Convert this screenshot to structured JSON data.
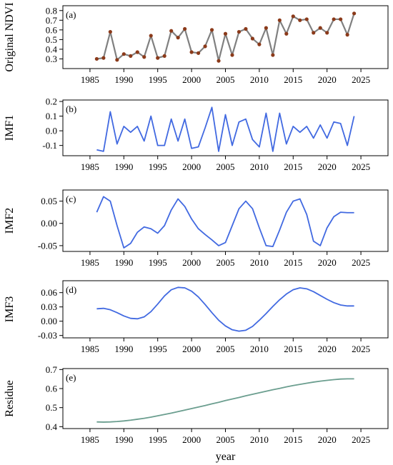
{
  "chart_data": [
    {
      "type": "line",
      "panel_label": "(a)",
      "ylabel": "Original NDVI",
      "x": [
        1986,
        1987,
        1988,
        1989,
        1990,
        1991,
        1992,
        1993,
        1994,
        1995,
        1996,
        1997,
        1998,
        1999,
        2000,
        2001,
        2002,
        2003,
        2004,
        2005,
        2006,
        2007,
        2008,
        2009,
        2010,
        2011,
        2012,
        2013,
        2014,
        2015,
        2016,
        2017,
        2018,
        2019,
        2020,
        2021,
        2022,
        2023,
        2024
      ],
      "series": [
        {
          "values": [
            0.3,
            0.31,
            0.58,
            0.29,
            0.35,
            0.33,
            0.37,
            0.32,
            0.54,
            0.31,
            0.33,
            0.59,
            0.52,
            0.61,
            0.37,
            0.36,
            0.43,
            0.6,
            0.28,
            0.56,
            0.34,
            0.58,
            0.61,
            0.51,
            0.45,
            0.62,
            0.34,
            0.7,
            0.56,
            0.74,
            0.7,
            0.71,
            0.57,
            0.62,
            0.57,
            0.71,
            0.71,
            0.55,
            0.77
          ],
          "color": "#808080",
          "marker_color": "#8B3A1A"
        }
      ],
      "ylim": [
        0.2,
        0.85
      ],
      "yticks": [
        "0.3",
        "0.4",
        "0.5",
        "0.6",
        "0.7",
        "0.8"
      ],
      "ytick_values": [
        0.3,
        0.4,
        0.5,
        0.6,
        0.7,
        0.8
      ],
      "xlim": [
        1981,
        2029
      ],
      "xticks": [
        "1985",
        "1990",
        "1995",
        "2000",
        "2005",
        "2010",
        "2015",
        "2020",
        "2025"
      ],
      "xtick_values": [
        1985,
        1990,
        1995,
        2000,
        2005,
        2010,
        2015,
        2020,
        2025
      ]
    },
    {
      "type": "line",
      "panel_label": "(b)",
      "ylabel": "IMF1",
      "x": [
        1986,
        1987,
        1988,
        1989,
        1990,
        1991,
        1992,
        1993,
        1994,
        1995,
        1996,
        1997,
        1998,
        1999,
        2000,
        2001,
        2002,
        2003,
        2004,
        2005,
        2006,
        2007,
        2008,
        2009,
        2010,
        2011,
        2012,
        2013,
        2014,
        2015,
        2016,
        2017,
        2018,
        2019,
        2020,
        2021,
        2022,
        2023,
        2024
      ],
      "series": [
        {
          "values": [
            -0.13,
            -0.14,
            0.13,
            -0.09,
            0.03,
            -0.01,
            0.03,
            -0.07,
            0.1,
            -0.1,
            -0.1,
            0.08,
            -0.07,
            0.08,
            -0.12,
            -0.11,
            0.02,
            0.16,
            -0.14,
            0.11,
            -0.1,
            0.06,
            0.08,
            -0.06,
            -0.11,
            0.12,
            -0.14,
            0.12,
            -0.09,
            0.03,
            -0.01,
            0.03,
            -0.05,
            0.04,
            -0.05,
            0.06,
            0.05,
            -0.1,
            0.1
          ],
          "color": "#4169E1"
        }
      ],
      "ylim": [
        -0.17,
        0.21
      ],
      "yticks": [
        "-0.1",
        "0.0",
        "0.1",
        "0.2"
      ],
      "ytick_values": [
        -0.1,
        0.0,
        0.1,
        0.2
      ],
      "xlim": [
        1981,
        2029
      ],
      "xticks": [
        "1985",
        "1990",
        "1995",
        "2000",
        "2005",
        "2010",
        "2015",
        "2020",
        "2025"
      ],
      "xtick_values": [
        1985,
        1990,
        1995,
        2000,
        2005,
        2010,
        2015,
        2020,
        2025
      ]
    },
    {
      "type": "line",
      "panel_label": "(c)",
      "ylabel": "IMF2",
      "x": [
        1986,
        1987,
        1988,
        1989,
        1990,
        1991,
        1992,
        1993,
        1994,
        1995,
        1996,
        1997,
        1998,
        1999,
        2000,
        2001,
        2002,
        2003,
        2004,
        2005,
        2006,
        2007,
        2008,
        2009,
        2010,
        2011,
        2012,
        2013,
        2014,
        2015,
        2016,
        2017,
        2018,
        2019,
        2020,
        2021,
        2022,
        2023,
        2024
      ],
      "series": [
        {
          "values": [
            0.025,
            0.06,
            0.05,
            -0.005,
            -0.055,
            -0.045,
            -0.02,
            -0.008,
            -0.012,
            -0.022,
            -0.005,
            0.03,
            0.055,
            0.038,
            0.01,
            -0.012,
            -0.025,
            -0.037,
            -0.05,
            -0.043,
            -0.005,
            0.033,
            0.05,
            0.033,
            -0.01,
            -0.05,
            -0.052,
            -0.015,
            0.025,
            0.05,
            0.055,
            0.02,
            -0.04,
            -0.05,
            -0.01,
            0.015,
            0.025,
            0.024,
            0.024
          ],
          "color": "#4169E1"
        }
      ],
      "ylim": [
        -0.063,
        0.075
      ],
      "yticks": [
        "-0.05",
        "0.00",
        "0.05"
      ],
      "ytick_values": [
        -0.05,
        0.0,
        0.05
      ],
      "xlim": [
        1981,
        2029
      ],
      "xticks": [
        "1985",
        "1990",
        "1995",
        "2000",
        "2005",
        "2010",
        "2015",
        "2020",
        "2025"
      ],
      "xtick_values": [
        1985,
        1990,
        1995,
        2000,
        2005,
        2010,
        2015,
        2020,
        2025
      ]
    },
    {
      "type": "line",
      "panel_label": "(d)",
      "ylabel": "IMF3",
      "x": [
        1986,
        1987,
        1988,
        1989,
        1990,
        1991,
        1992,
        1993,
        1994,
        1995,
        1996,
        1997,
        1998,
        1999,
        2000,
        2001,
        2002,
        2003,
        2004,
        2005,
        2006,
        2007,
        2008,
        2009,
        2010,
        2011,
        2012,
        2013,
        2014,
        2015,
        2016,
        2017,
        2018,
        2019,
        2020,
        2021,
        2022,
        2023,
        2024
      ],
      "series": [
        {
          "values": [
            0.026,
            0.027,
            0.024,
            0.018,
            0.011,
            0.006,
            0.005,
            0.009,
            0.02,
            0.036,
            0.053,
            0.066,
            0.071,
            0.07,
            0.063,
            0.051,
            0.035,
            0.018,
            0.002,
            -0.01,
            -0.018,
            -0.021,
            -0.019,
            -0.011,
            0.002,
            0.016,
            0.031,
            0.045,
            0.057,
            0.066,
            0.07,
            0.068,
            0.062,
            0.054,
            0.046,
            0.039,
            0.034,
            0.032,
            0.032
          ],
          "color": "#4169E1"
        }
      ],
      "ylim": [
        -0.035,
        0.085
      ],
      "yticks": [
        "-0.03",
        "0.00",
        "0.03",
        "0.06"
      ],
      "ytick_values": [
        -0.03,
        0.0,
        0.03,
        0.06
      ],
      "xlim": [
        1981,
        2029
      ],
      "xticks": [
        "1985",
        "1990",
        "1995",
        "2000",
        "2005",
        "2010",
        "2015",
        "2020",
        "2025"
      ],
      "xtick_values": [
        1985,
        1990,
        1995,
        2000,
        2005,
        2010,
        2015,
        2020,
        2025
      ]
    },
    {
      "type": "line",
      "panel_label": "(e)",
      "ylabel": "Residue",
      "xlabel": "year",
      "x": [
        1986,
        1987,
        1988,
        1989,
        1990,
        1991,
        1992,
        1993,
        1994,
        1995,
        1996,
        1997,
        1998,
        1999,
        2000,
        2001,
        2002,
        2003,
        2004,
        2005,
        2006,
        2007,
        2008,
        2009,
        2010,
        2011,
        2012,
        2013,
        2014,
        2015,
        2016,
        2017,
        2018,
        2019,
        2020,
        2021,
        2022,
        2023,
        2024
      ],
      "series": [
        {
          "values": [
            0.425,
            0.424,
            0.425,
            0.427,
            0.43,
            0.434,
            0.439,
            0.444,
            0.45,
            0.457,
            0.464,
            0.471,
            0.479,
            0.487,
            0.495,
            0.503,
            0.511,
            0.52,
            0.528,
            0.537,
            0.545,
            0.553,
            0.562,
            0.57,
            0.578,
            0.586,
            0.594,
            0.601,
            0.609,
            0.616,
            0.622,
            0.628,
            0.634,
            0.639,
            0.643,
            0.647,
            0.65,
            0.651,
            0.651
          ],
          "color": "#6B9E8F"
        }
      ],
      "ylim": [
        0.39,
        0.705
      ],
      "yticks": [
        "0.4",
        "0.5",
        "0.6",
        "0.7"
      ],
      "ytick_values": [
        0.4,
        0.5,
        0.6,
        0.7
      ],
      "xlim": [
        1981,
        2029
      ],
      "xticks": [
        "1985",
        "1990",
        "1995",
        "2000",
        "2005",
        "2010",
        "2015",
        "2020",
        "2025"
      ],
      "xtick_values": [
        1985,
        1990,
        1995,
        2000,
        2005,
        2010,
        2015,
        2020,
        2025
      ]
    }
  ]
}
